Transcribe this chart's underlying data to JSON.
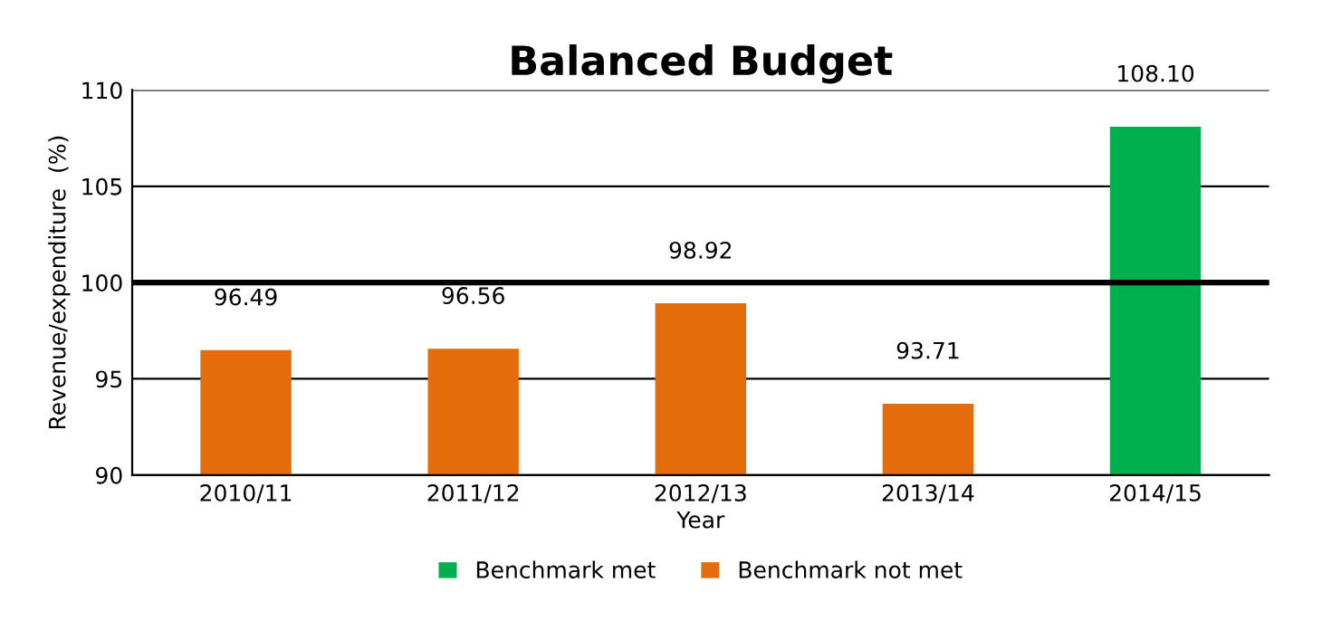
{
  "chart_data": {
    "type": "bar",
    "title": "Balanced Budget",
    "xlabel": "Year",
    "ylabel": "Revenue/expenditure  (%)",
    "categories": [
      "2010/11",
      "2011/12",
      "2012/13",
      "2013/14",
      "2014/15"
    ],
    "series": [
      {
        "name": "Benchmark met",
        "color": "#00b050",
        "values": [
          null,
          null,
          null,
          null,
          108.1
        ],
        "value_labels": [
          null,
          null,
          null,
          null,
          "108.10"
        ]
      },
      {
        "name": "Benchmark not met",
        "color": "#e46c0a",
        "values": [
          96.49,
          96.56,
          98.92,
          93.71,
          null
        ],
        "value_labels": [
          "96.49",
          "96.56",
          "98.92",
          "93.71",
          null
        ]
      }
    ],
    "ylim": [
      90,
      110
    ],
    "yticks": [
      90,
      95,
      100,
      105,
      110
    ],
    "grid": "y",
    "legend": "bottom",
    "ref_lines": [
      {
        "axis": "y",
        "value": 100,
        "color": "#000000"
      }
    ]
  }
}
